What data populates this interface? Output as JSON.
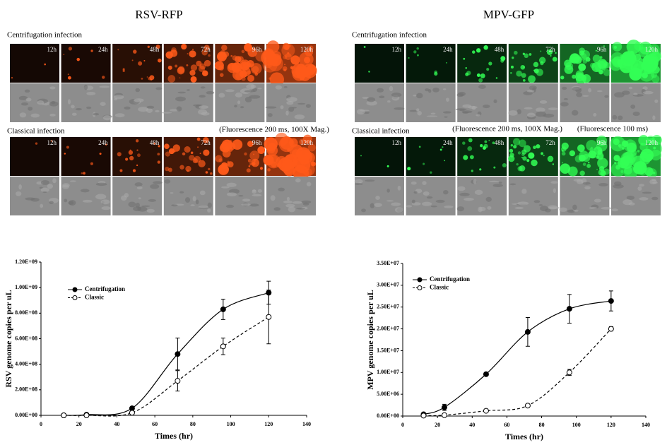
{
  "panels": [
    {
      "title": "RSV-RFP",
      "color": "#ff5a1a",
      "rows": [
        {
          "label": "Centrifugation infection",
          "times": [
            "12h",
            "24h",
            "48h",
            "72h",
            "96h",
            "120h"
          ]
        },
        {
          "label": "Classical infection",
          "times": [
            "12h",
            "24h",
            "48h",
            "72h",
            "96h",
            "120h"
          ]
        }
      ],
      "notes": [
        "(Fluorescence  200 ms, 100X Mag.)"
      ]
    },
    {
      "title": "MPV-GFP",
      "color": "#33ff55",
      "rows": [
        {
          "label": "Centrifugation infection",
          "times": [
            "12h",
            "24h",
            "48h",
            "72h",
            "96h",
            "120h"
          ]
        },
        {
          "label": "Classical infection",
          "times": [
            "12h",
            "24h",
            "48h",
            "72h",
            "96h",
            "120h"
          ]
        }
      ],
      "notes": [
        "(Fluorescence  200 ms, 100X Mag.)",
        "(Fluorescence  100 ms)"
      ]
    }
  ],
  "chart_data": [
    {
      "type": "line",
      "x_label": "Times (hr)",
      "y_label": "RSV genome copies per uL",
      "x": [
        12,
        24,
        48,
        72,
        96,
        120
      ],
      "series": [
        {
          "name": "Centrifugation",
          "color": "#000000",
          "marker": "filled",
          "dashed": false,
          "values": [
            0,
            5000000,
            55000000,
            480000000,
            830000000,
            960000000
          ],
          "errors": [
            0,
            0,
            0,
            125000000,
            80000000,
            90000000
          ]
        },
        {
          "name": "Classic",
          "color": "#000000",
          "marker": "open",
          "dashed": true,
          "values": [
            0,
            0,
            20000000,
            270000000,
            540000000,
            770000000
          ],
          "errors": [
            0,
            0,
            0,
            80000000,
            65000000,
            210000000
          ]
        }
      ],
      "xlim": [
        0,
        140
      ],
      "xticks": [
        0,
        20,
        40,
        60,
        80,
        100,
        120,
        140
      ],
      "ylim": [
        0,
        1200000000
      ],
      "yticks": [
        {
          "value": 0,
          "label": "0.00E+00"
        },
        {
          "value": 200000000,
          "label": "2.00E+08"
        },
        {
          "value": 400000000,
          "label": "4.00E+08"
        },
        {
          "value": 600000000,
          "label": "6.00E+08"
        },
        {
          "value": 800000000,
          "label": "8.00E+08"
        },
        {
          "value": 1000000000,
          "label": "1.00E+09"
        },
        {
          "value": 1200000000,
          "label": "1.20E+09"
        }
      ],
      "legend": "upper left",
      "grid": false
    },
    {
      "type": "line",
      "x_label": "Times (hr)",
      "y_label": "MPV genome copies per uL",
      "x": [
        12,
        24,
        48,
        72,
        96,
        120
      ],
      "series": [
        {
          "name": "Centrifugation",
          "color": "#000000",
          "marker": "filled",
          "dashed": false,
          "values": [
            400000,
            2000000,
            9600000,
            19300000,
            24600000,
            26400000
          ],
          "errors": [
            0,
            700000,
            0,
            3300000,
            3300000,
            2300000
          ]
        },
        {
          "name": "Classic",
          "color": "#000000",
          "marker": "open",
          "dashed": true,
          "values": [
            100000,
            200000,
            1200000,
            2400000,
            10000000,
            20000000
          ],
          "errors": [
            0,
            0,
            0,
            0,
            700000,
            500000
          ]
        }
      ],
      "xlim": [
        0,
        140
      ],
      "xticks": [
        0,
        20,
        40,
        60,
        80,
        100,
        120,
        140
      ],
      "ylim": [
        0,
        35000000
      ],
      "yticks": [
        {
          "value": 0,
          "label": "0.00E+00"
        },
        {
          "value": 5000000,
          "label": "5.00E+06"
        },
        {
          "value": 10000000,
          "label": "1.00E+07"
        },
        {
          "value": 15000000,
          "label": "1.50E+07"
        },
        {
          "value": 20000000,
          "label": "2.00E+07"
        },
        {
          "value": 25000000,
          "label": "2.50E+07"
        },
        {
          "value": 30000000,
          "label": "3.00E+07"
        },
        {
          "value": 35000000,
          "label": "3.50E+07"
        }
      ],
      "legend": "upper left",
      "grid": false
    }
  ]
}
